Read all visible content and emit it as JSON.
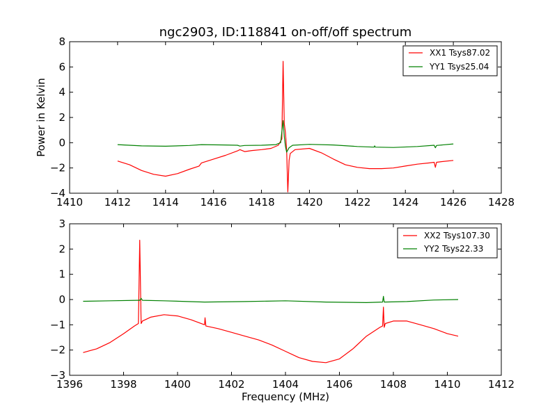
{
  "chart_data": [
    {
      "type": "line",
      "title": "ngc2903, ID:118841 on-off/off spectrum",
      "xlabel": "",
      "ylabel": "Power in Kelvin",
      "xlim": [
        1410,
        1428
      ],
      "ylim": [
        -4,
        8
      ],
      "xticks": [
        1410,
        1412,
        1414,
        1416,
        1418,
        1420,
        1422,
        1424,
        1426,
        1428
      ],
      "yticks": [
        -4,
        -2,
        0,
        2,
        4,
        6,
        8
      ],
      "grid": false,
      "legend": "top-right",
      "series": [
        {
          "name": "XX1 Tsys87.02",
          "color": "#ff0000",
          "x": [
            1412.0,
            1412.5,
            1413.0,
            1413.5,
            1414.0,
            1414.5,
            1415.0,
            1415.4,
            1415.5,
            1416.0,
            1416.5,
            1417.0,
            1417.1,
            1417.3,
            1417.6,
            1418.0,
            1418.4,
            1418.7,
            1418.85,
            1418.9,
            1418.95,
            1419.0,
            1419.05,
            1419.1,
            1419.15,
            1419.2,
            1419.4,
            1420.0,
            1420.5,
            1421.0,
            1421.5,
            1422.0,
            1422.5,
            1423.0,
            1423.5,
            1424.0,
            1424.5,
            1425.0,
            1425.2,
            1425.25,
            1425.3,
            1425.5,
            1426.0
          ],
          "y": [
            -1.45,
            -1.75,
            -2.2,
            -2.5,
            -2.65,
            -2.45,
            -2.1,
            -1.85,
            -1.6,
            -1.3,
            -1.0,
            -0.65,
            -0.55,
            -0.7,
            -0.62,
            -0.55,
            -0.45,
            -0.2,
            0.3,
            6.45,
            1.5,
            0.8,
            -0.6,
            -3.9,
            -1.4,
            -0.85,
            -0.55,
            -0.45,
            -0.8,
            -1.3,
            -1.75,
            -1.95,
            -2.05,
            -2.05,
            -2.0,
            -1.85,
            -1.7,
            -1.6,
            -1.55,
            -1.95,
            -1.55,
            -1.5,
            -1.4
          ]
        },
        {
          "name": "YY1 Tsys25.04",
          "color": "#008000",
          "x": [
            1412.0,
            1413.0,
            1414.0,
            1415.0,
            1415.5,
            1416.5,
            1417.0,
            1417.1,
            1417.3,
            1418.0,
            1418.6,
            1418.8,
            1418.9,
            1418.95,
            1419.0,
            1419.05,
            1419.15,
            1419.3,
            1420.0,
            1421.0,
            1422.0,
            1422.7,
            1422.72,
            1422.75,
            1423.5,
            1424.5,
            1425.2,
            1425.25,
            1425.3,
            1426.0
          ],
          "y": [
            -0.15,
            -0.25,
            -0.28,
            -0.22,
            -0.15,
            -0.18,
            -0.2,
            -0.27,
            -0.22,
            -0.2,
            -0.15,
            0.0,
            1.75,
            0.5,
            -0.3,
            -0.75,
            -0.4,
            -0.2,
            -0.13,
            -0.18,
            -0.3,
            -0.35,
            -0.25,
            -0.35,
            -0.38,
            -0.3,
            -0.2,
            -0.4,
            -0.22,
            -0.1
          ]
        }
      ]
    },
    {
      "type": "line",
      "title": "",
      "xlabel": "Frequency (MHz)",
      "ylabel": "",
      "xlim": [
        1396,
        1412
      ],
      "ylim": [
        -3,
        3
      ],
      "xticks": [
        1396,
        1398,
        1400,
        1402,
        1404,
        1406,
        1408,
        1410,
        1412
      ],
      "yticks": [
        -3,
        -2,
        -1,
        0,
        1,
        2,
        3
      ],
      "grid": false,
      "legend": "top-right",
      "series": [
        {
          "name": "XX2 Tsys107.30",
          "color": "#ff0000",
          "x": [
            1396.5,
            1397.0,
            1397.5,
            1398.0,
            1398.4,
            1398.55,
            1398.6,
            1398.65,
            1398.7,
            1399.0,
            1399.5,
            1400.0,
            1400.5,
            1401.0,
            1401.02,
            1401.05,
            1401.5,
            1402.0,
            1402.5,
            1403.0,
            1403.5,
            1404.0,
            1404.5,
            1405.0,
            1405.5,
            1406.0,
            1406.5,
            1407.0,
            1407.5,
            1407.6,
            1407.63,
            1407.66,
            1407.7,
            1408.0,
            1408.5,
            1409.0,
            1409.5,
            1410.0,
            1410.4
          ],
          "y": [
            -2.1,
            -1.95,
            -1.7,
            -1.35,
            -1.05,
            -0.95,
            2.35,
            -0.95,
            -0.85,
            -0.7,
            -0.6,
            -0.65,
            -0.8,
            -1.0,
            -0.72,
            -1.05,
            -1.15,
            -1.3,
            -1.45,
            -1.6,
            -1.8,
            -2.05,
            -2.3,
            -2.45,
            -2.5,
            -2.35,
            -1.95,
            -1.45,
            -1.1,
            -1.05,
            -0.3,
            -1.1,
            -0.95,
            -0.85,
            -0.85,
            -1.0,
            -1.15,
            -1.35,
            -1.45
          ]
        },
        {
          "name": "YY2 Tsys22.33",
          "color": "#008000",
          "x": [
            1396.5,
            1397.5,
            1398.5,
            1398.6,
            1398.65,
            1398.7,
            1399.5,
            1401.0,
            1402.5,
            1404.0,
            1405.5,
            1407.0,
            1407.6,
            1407.63,
            1407.66,
            1408.5,
            1409.5,
            1410.4
          ],
          "y": [
            -0.07,
            -0.05,
            -0.03,
            -0.03,
            0.05,
            -0.03,
            -0.05,
            -0.1,
            -0.08,
            -0.05,
            -0.1,
            -0.12,
            -0.1,
            0.13,
            -0.1,
            -0.08,
            -0.02,
            0.0
          ]
        }
      ]
    }
  ]
}
